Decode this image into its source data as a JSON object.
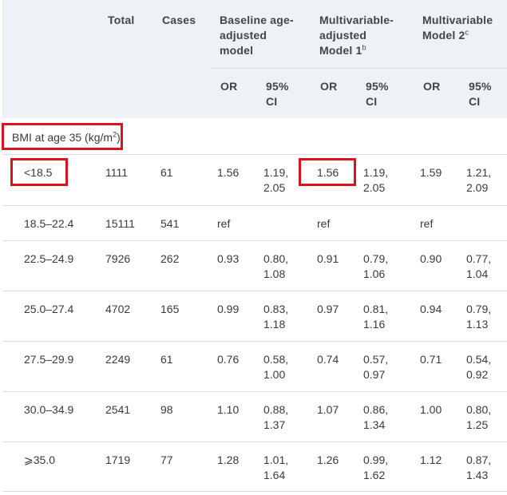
{
  "table": {
    "headers": {
      "total": "Total",
      "cases": "Cases",
      "baseline": "Baseline age-\nadjusted\nmodel",
      "model1": "Multivariable-\nadjusted\nModel 1",
      "model1_sup": "b",
      "model2": "Multivariable\nModel 2",
      "model2_sup": "c",
      "or": "OR",
      "ci": "95%\nCI"
    },
    "section_label": "BMI at age 35 (kg/m",
    "section_label_sup": "2",
    "section_label_end": ")",
    "rows": [
      {
        "bmi": "<18.5",
        "total": "1111",
        "cases": "61",
        "or1": "1.56",
        "ci1": "1.19,\n2.05",
        "or2": "1.56",
        "ci2": "1.19,\n2.05",
        "or3": "1.59",
        "ci3": "1.21,\n2.09"
      },
      {
        "bmi": "18.5–22.4",
        "total": "15111",
        "cases": "541",
        "or1": "ref",
        "ci1": "",
        "or2": "ref",
        "ci2": "",
        "or3": "ref",
        "ci3": ""
      },
      {
        "bmi": "22.5–24.9",
        "total": "7926",
        "cases": "262",
        "or1": "0.93",
        "ci1": "0.80,\n1.08",
        "or2": "0.91",
        "ci2": "0.79,\n1.06",
        "or3": "0.90",
        "ci3": "0.77,\n1.04"
      },
      {
        "bmi": "25.0–27.4",
        "total": "4702",
        "cases": "165",
        "or1": "0.99",
        "ci1": "0.83,\n1.18",
        "or2": "0.97",
        "ci2": "0.81,\n1.16",
        "or3": "0.94",
        "ci3": "0.79,\n1.13"
      },
      {
        "bmi": "27.5–29.9",
        "total": "2249",
        "cases": "61",
        "or1": "0.76",
        "ci1": "0.58,\n1.00",
        "or2": "0.74",
        "ci2": "0.57,\n0.97",
        "or3": "0.71",
        "ci3": "0.54,\n0.92"
      },
      {
        "bmi": "30.0–34.9",
        "total": "2541",
        "cases": "98",
        "or1": "1.10",
        "ci1": "0.88,\n1.37",
        "or2": "1.07",
        "ci2": "0.86,\n1.34",
        "or3": "1.00",
        "ci3": "0.80,\n1.25"
      },
      {
        "bmi": "⩾35.0",
        "total": "1719",
        "cases": "77",
        "or1": "1.28",
        "ci1": "1.01,\n1.64",
        "or2": "1.26",
        "ci2": "0.99,\n1.62",
        "or3": "1.12",
        "ci3": "0.87,\n1.43"
      }
    ]
  },
  "colors": {
    "header_bg": "#eef2f6",
    "highlight": "#d9141c"
  }
}
